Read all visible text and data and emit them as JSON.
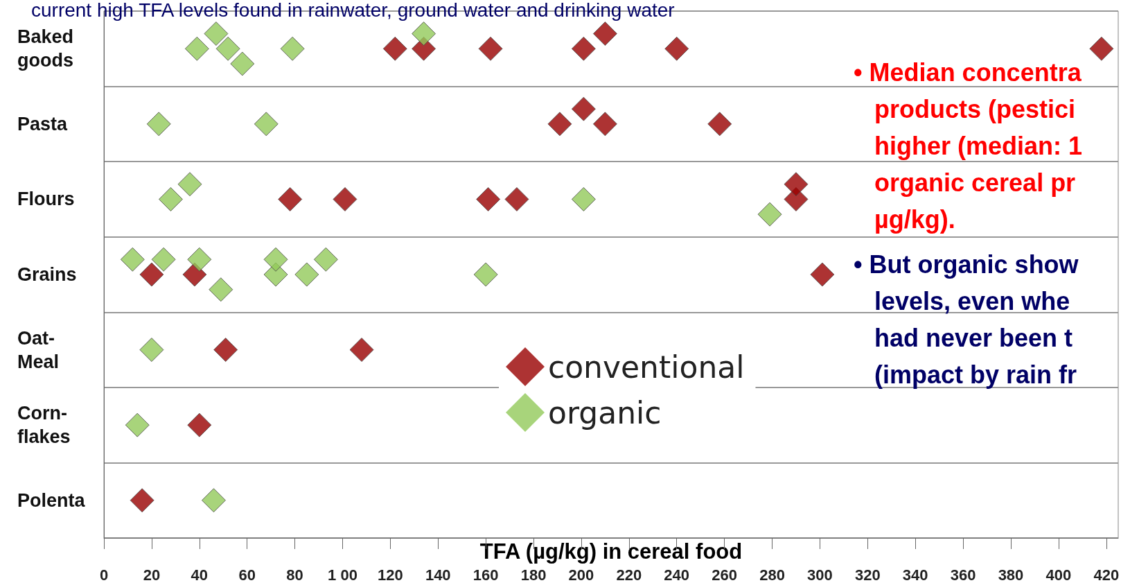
{
  "chart_data": {
    "type": "scatter",
    "orientation": "horizontal",
    "xlabel": "TFA (µg/kg) in cereal food",
    "categories": [
      "Baked goods",
      "Pasta",
      "Flours",
      "Grains",
      "Oat-Meal",
      "Corn-flakes",
      "Polenta"
    ],
    "xlim": [
      0,
      425
    ],
    "xticks": [
      0,
      20,
      40,
      60,
      80,
      {
        "value": 100,
        "label": "1 00"
      },
      120,
      140,
      160,
      180,
      200,
      220,
      240,
      260,
      280,
      300,
      320,
      340,
      360,
      380,
      400,
      420
    ],
    "series": [
      {
        "name": "conventional",
        "color": "#990000",
        "x": [
          "Baked goods",
          "Baked goods",
          "Baked goods",
          "Baked goods",
          "Baked goods",
          "Baked goods",
          "Baked goods",
          "Pasta",
          "Pasta",
          "Pasta",
          "Pasta",
          "Flours",
          "Flours",
          "Flours",
          "Flours",
          "Flours",
          "Flours",
          "Grains",
          "Grains",
          "Grains",
          "Oat-Meal",
          "Oat-Meal",
          "Corn-flakes",
          "Polenta"
        ],
        "values": [
          122,
          134,
          162,
          201,
          210,
          240,
          418,
          191,
          210,
          201,
          258,
          78,
          101,
          161,
          173,
          290,
          290,
          20,
          38,
          301,
          51,
          108,
          40,
          16
        ]
      },
      {
        "name": "organic",
        "color": "#92c95a",
        "x": [
          "Baked goods",
          "Baked goods",
          "Baked goods",
          "Baked goods",
          "Baked goods",
          "Baked goods",
          "Pasta",
          "Pasta",
          "Flours",
          "Flours",
          "Flours",
          "Flours",
          "Grains",
          "Grains",
          "Grains",
          "Grains",
          "Grains",
          "Grains",
          "Grains",
          "Grains",
          "Grains",
          "Oat-Meal",
          "Corn-flakes",
          "Polenta"
        ],
        "values": [
          39,
          52,
          47,
          58,
          79,
          134,
          23,
          68,
          28,
          36,
          201,
          279,
          12,
          25,
          40,
          72,
          85,
          49,
          72,
          93,
          160,
          20,
          14,
          46
        ]
      }
    ],
    "marker": "diamond",
    "grid": "y",
    "legend": "center",
    "annotations": [
      "current high TFA levels found in rainwater, ground water and drinking water",
      "• Median concentra\n   products (pestici\n   higher (median: 1\n   organic cereal pr\n   µg/kg).",
      "• But organic show\n   levels, even whe\n   had never been t\n   (impact by rain fr"
    ]
  }
}
